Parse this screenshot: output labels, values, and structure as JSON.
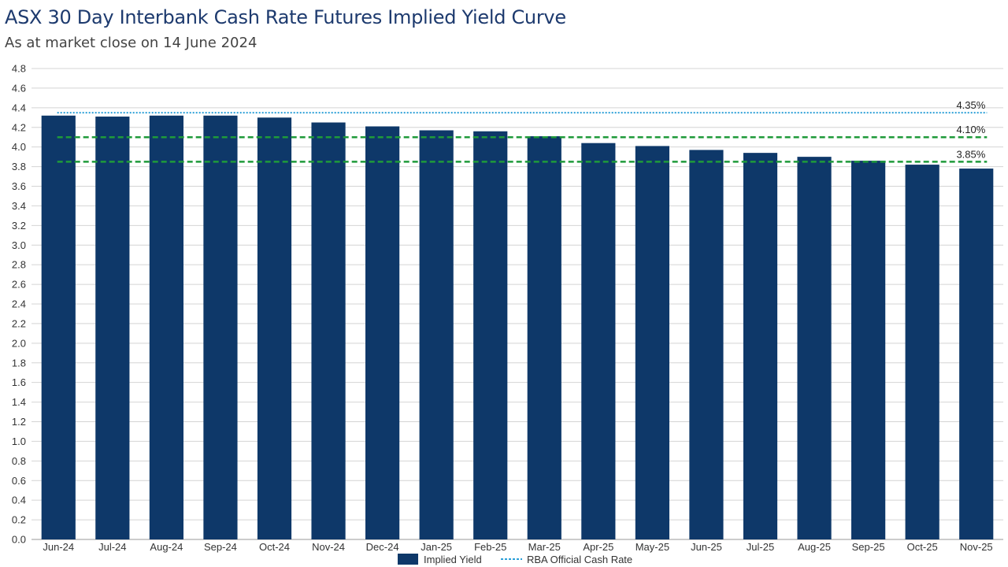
{
  "header": {
    "title": "ASX 30 Day Interbank Cash Rate Futures Implied Yield Curve",
    "subtitle": "As at market close on 14 June 2024"
  },
  "chart_data": {
    "type": "bar",
    "title": "ASX 30 Day Interbank Cash Rate Futures Implied Yield Curve",
    "subtitle": "As at market close on 14 June 2024",
    "xlabel": "",
    "ylabel": "",
    "ylim": [
      0,
      4.8
    ],
    "yticks": [
      0.0,
      0.2,
      0.4,
      0.6,
      0.8,
      1.0,
      1.2,
      1.4,
      1.6,
      1.8,
      2.0,
      2.2,
      2.4,
      2.6,
      2.8,
      3.0,
      3.2,
      3.4,
      3.6,
      3.8,
      4.0,
      4.2,
      4.4,
      4.6,
      4.8
    ],
    "grid": true,
    "legend_position": "bottom",
    "categories": [
      "Jun-24",
      "Jul-24",
      "Aug-24",
      "Sep-24",
      "Oct-24",
      "Nov-24",
      "Dec-24",
      "Jan-25",
      "Feb-25",
      "Mar-25",
      "Apr-25",
      "May-25",
      "Jun-25",
      "Jul-25",
      "Aug-25",
      "Sep-25",
      "Oct-25",
      "Nov-25"
    ],
    "series": [
      {
        "name": "Implied Yield",
        "type": "bar",
        "color": "#0e3869",
        "values": [
          4.32,
          4.31,
          4.32,
          4.32,
          4.3,
          4.25,
          4.21,
          4.17,
          4.16,
          4.11,
          4.04,
          4.01,
          3.97,
          3.94,
          3.9,
          3.86,
          3.82,
          3.78
        ]
      },
      {
        "name": "RBA Official Cash Rate",
        "type": "line",
        "style": "dotted",
        "color": "#2a9fd8",
        "value": 4.35,
        "label": "4.35%"
      }
    ],
    "reference_lines": [
      {
        "value": 4.1,
        "label": "4.10%",
        "color": "#1f9a3a",
        "style": "dashed"
      },
      {
        "value": 3.85,
        "label": "3.85%",
        "color": "#1f9a3a",
        "style": "dashed"
      }
    ]
  }
}
